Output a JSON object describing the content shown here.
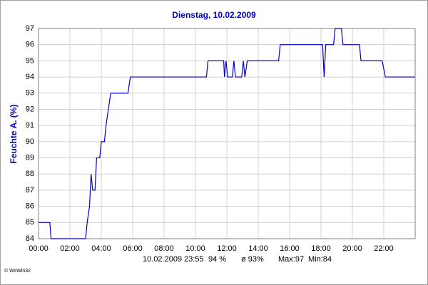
{
  "chart_data": {
    "type": "line",
    "title": "Dienstag, 10.02.2009",
    "y_label": "Feuchte A. (%)",
    "annotations": [
      "10.02.2009",
      "23:55",
      "94 %",
      "ø 93%",
      "Max:97",
      "Min:84"
    ],
    "credit": "© WsWin32",
    "xlim": [
      0,
      24
    ],
    "xticks": [
      {
        "value": 0,
        "label": "00:00"
      },
      {
        "value": 2,
        "label": "02:00"
      },
      {
        "value": 4,
        "label": "04:00"
      },
      {
        "value": 6,
        "label": "06:00"
      },
      {
        "value": 8,
        "label": "08:00"
      },
      {
        "value": 10,
        "label": "10:00"
      },
      {
        "value": 12,
        "label": "12:00"
      },
      {
        "value": 14,
        "label": "14:00"
      },
      {
        "value": 16,
        "label": "16:00"
      },
      {
        "value": 18,
        "label": "18:00"
      },
      {
        "value": 20,
        "label": "20:00"
      },
      {
        "value": 22,
        "label": "22:00"
      }
    ],
    "ylim": [
      84,
      97
    ],
    "yticks": [
      84,
      85,
      86,
      87,
      88,
      89,
      90,
      91,
      92,
      93,
      94,
      95,
      96,
      97
    ],
    "grid": true,
    "x": [
      0,
      0.72,
      0.8,
      3.0,
      3.1,
      3.25,
      3.35,
      3.45,
      3.6,
      3.7,
      3.9,
      4.0,
      4.2,
      4.3,
      4.45,
      4.6,
      5.7,
      5.85,
      10.7,
      10.8,
      11.8,
      11.85,
      11.95,
      12.05,
      12.35,
      12.45,
      12.55,
      12.95,
      13.05,
      13.15,
      13.3,
      15.3,
      15.4,
      18.1,
      18.2,
      18.3,
      18.8,
      18.9,
      19.3,
      19.4,
      20.45,
      20.55,
      21.9,
      22.1,
      24
    ],
    "series": [
      {
        "color": "#0000c8",
        "values": [
          85,
          85,
          84,
          84,
          85,
          86,
          88,
          87,
          87,
          89,
          89,
          90,
          90,
          91,
          92,
          93,
          93,
          94,
          94,
          95,
          95,
          94,
          95,
          94,
          94,
          95,
          94,
          94,
          95,
          94,
          95,
          95,
          96,
          96,
          94,
          96,
          96,
          97,
          97,
          96,
          96,
          95,
          95,
          94,
          94
        ]
      }
    ]
  }
}
